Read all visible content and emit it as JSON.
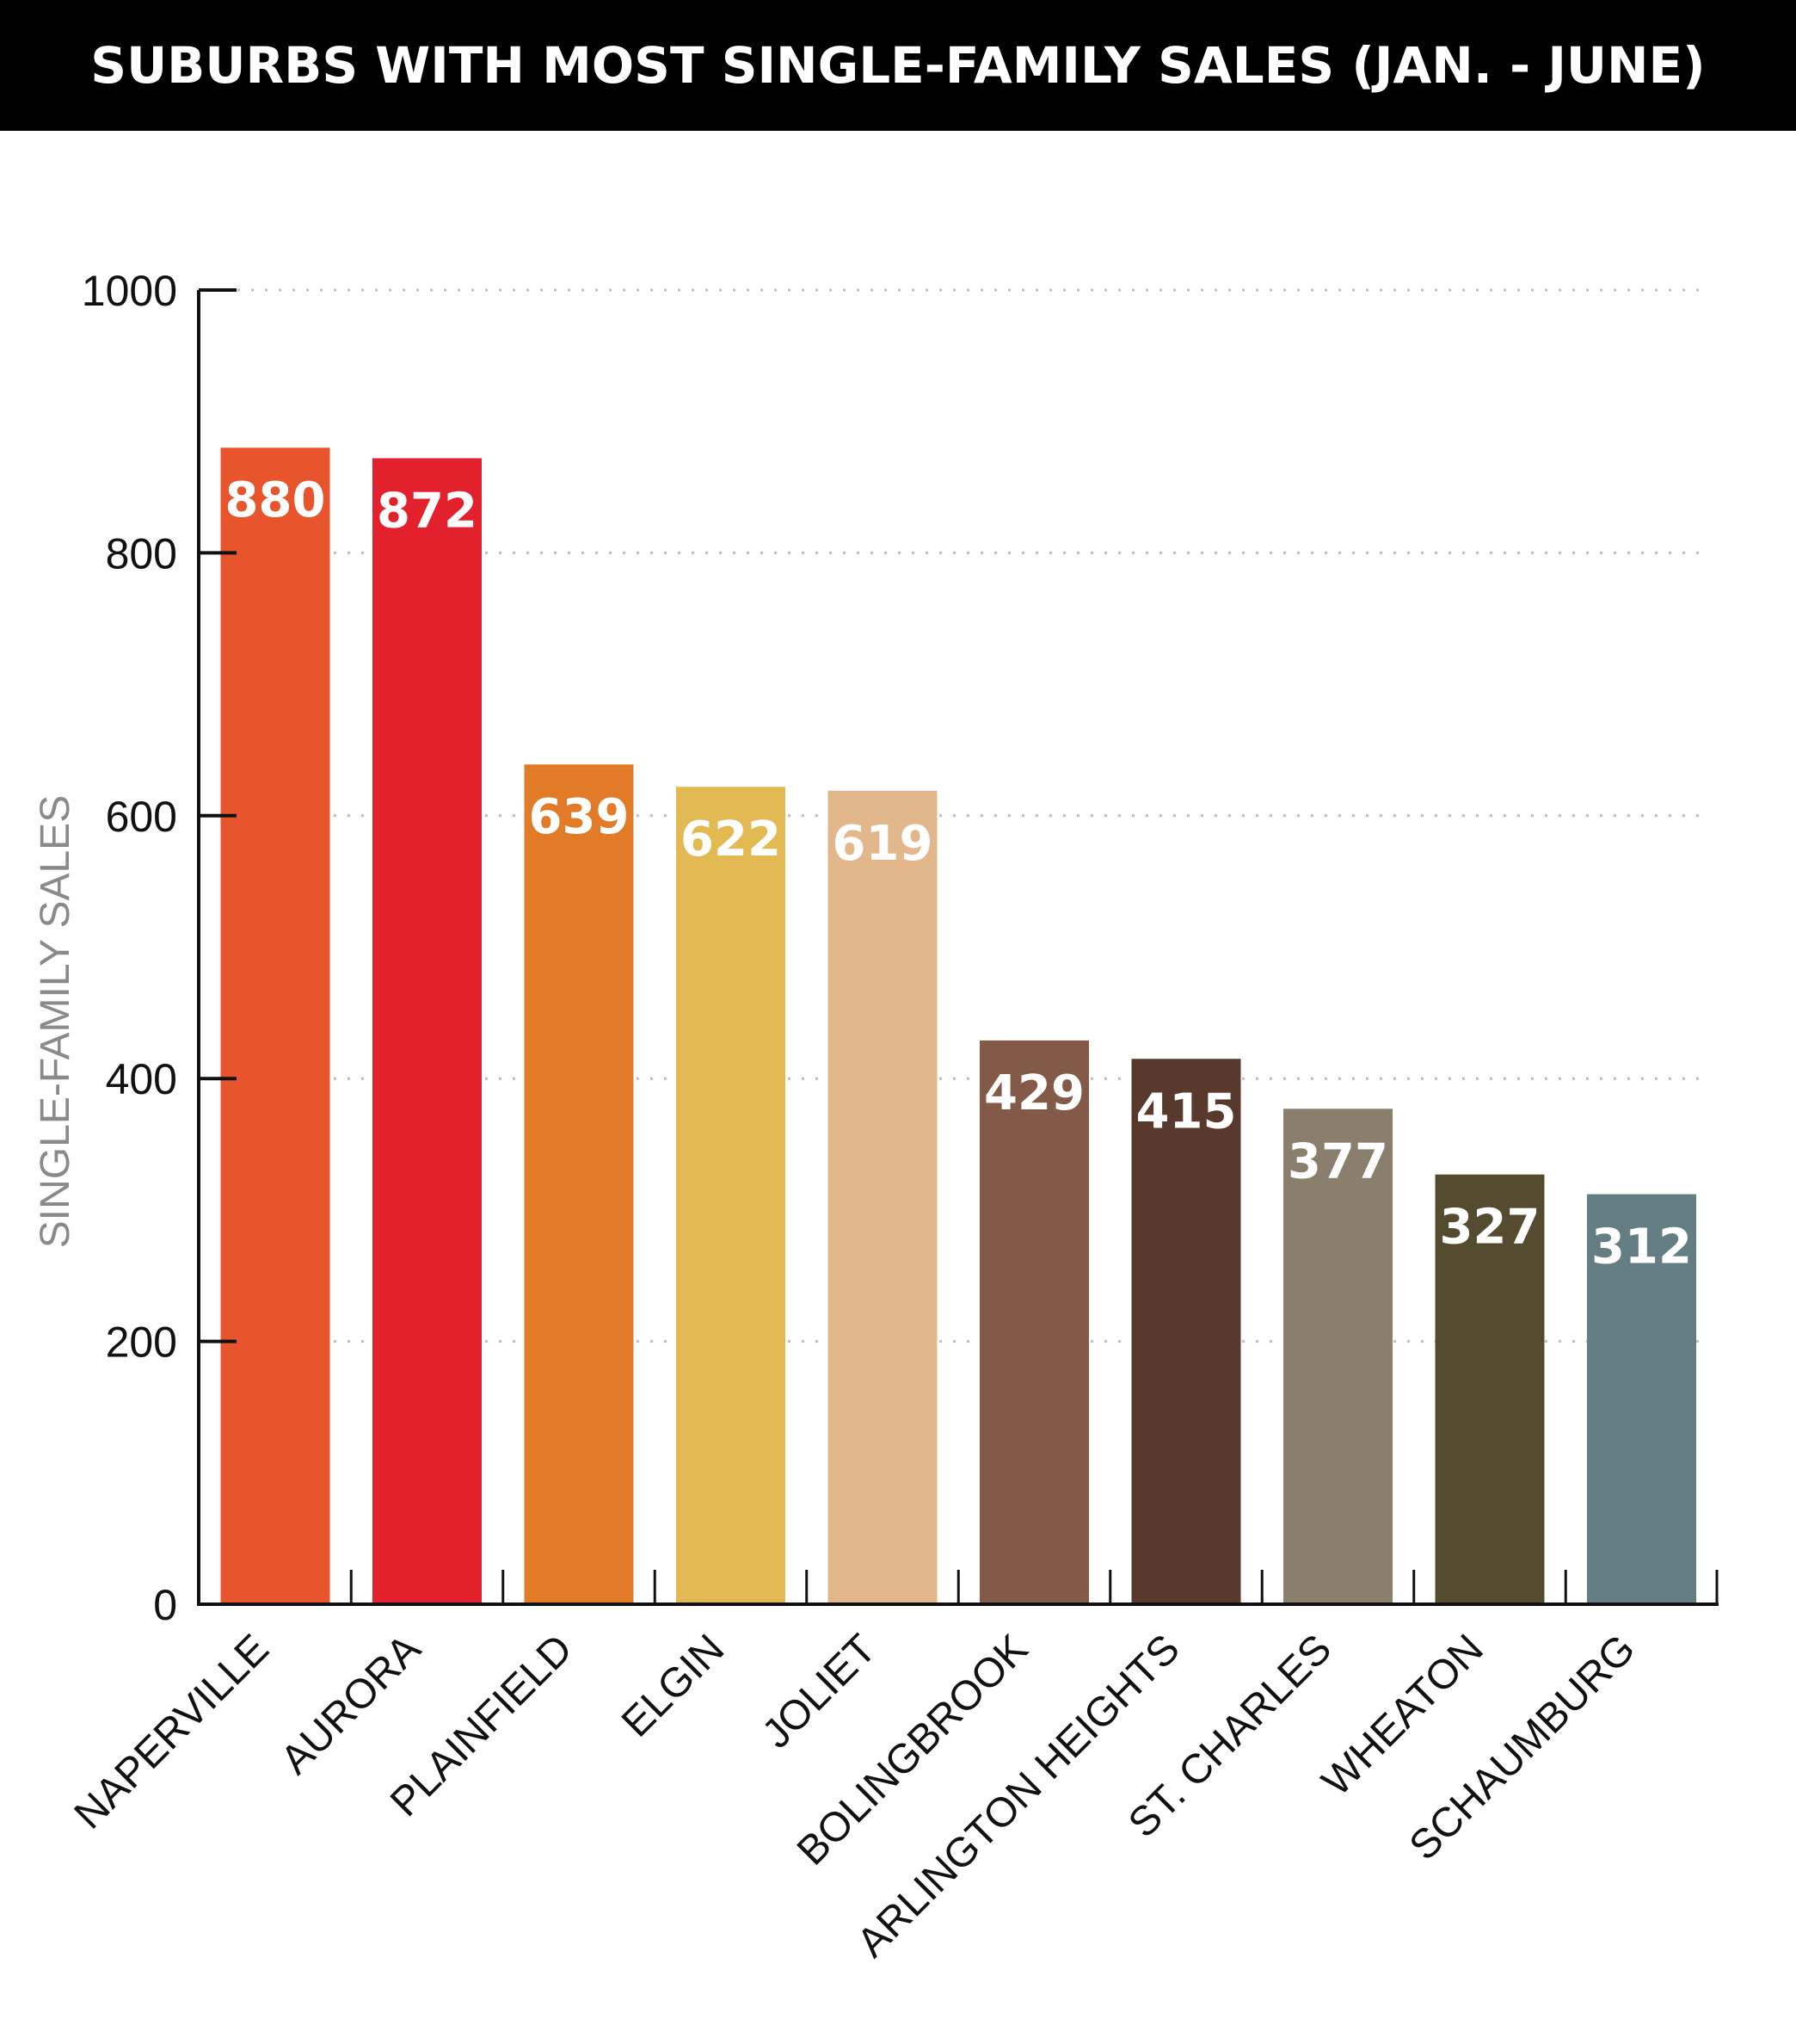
{
  "chart_data": {
    "type": "bar",
    "title": "SUBURBS WITH MOST SINGLE-FAMILY SALES (JAN. - JUNE)",
    "xlabel": "",
    "ylabel": "SINGLE-FAMILY SALES",
    "ylim": [
      0,
      1000
    ],
    "yticks": [
      0,
      200,
      400,
      600,
      800,
      1000
    ],
    "grid": true,
    "categories": [
      "NAPERVILLE",
      "AURORA",
      "PLAINFIELD",
      "ELGIN",
      "JOLIET",
      "BOLINGBROOK",
      "ARLINGTON HEIGHTS",
      "ST. CHARLES",
      "WHEATON",
      "SCHAUMBURG"
    ],
    "values": [
      880,
      872,
      639,
      622,
      619,
      429,
      415,
      377,
      327,
      312
    ],
    "value_labels": [
      "880",
      "872",
      "639",
      "622",
      "619",
      "429",
      "415",
      "377",
      "327",
      "312"
    ],
    "colors": [
      "#E8542C",
      "#E3212D",
      "#E27B28",
      "#E3B953",
      "#E2B78C",
      "#835A48",
      "#5A392D",
      "#8A7E6C",
      "#554C30",
      "#657E83"
    ]
  }
}
